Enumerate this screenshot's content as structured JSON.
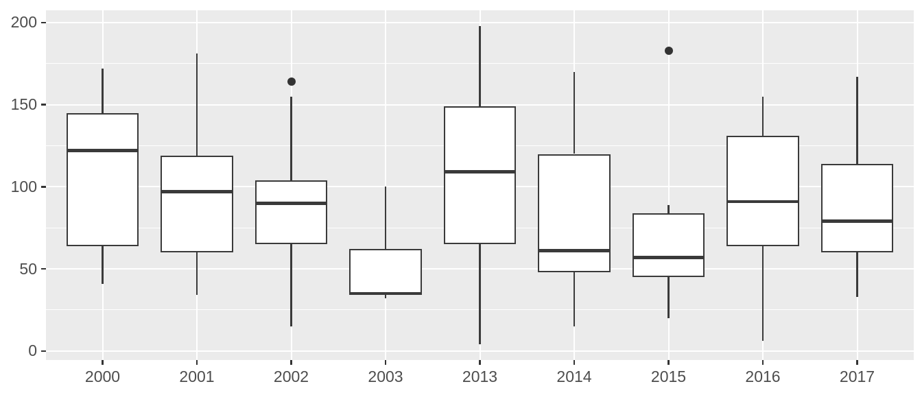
{
  "chart_data": {
    "type": "boxplot",
    "title": "",
    "xlabel": "",
    "ylabel": "",
    "categories": [
      "2000",
      "2001",
      "2002",
      "2003",
      "2013",
      "2014",
      "2015",
      "2016",
      "2017"
    ],
    "series": [
      {
        "category": "2000",
        "min": 41,
        "q1": 64,
        "median": 122,
        "q3": 145,
        "max": 172,
        "outliers": []
      },
      {
        "category": "2001",
        "min": 34,
        "q1": 60,
        "median": 97,
        "q3": 119,
        "max": 181,
        "outliers": []
      },
      {
        "category": "2002",
        "min": 15,
        "q1": 65,
        "median": 90,
        "q3": 104,
        "max": 155,
        "outliers": [
          164
        ]
      },
      {
        "category": "2003",
        "min": 32,
        "q1": 34,
        "median": 35,
        "q3": 62,
        "max": 100,
        "outliers": []
      },
      {
        "category": "2013",
        "min": 4,
        "q1": 65,
        "median": 109,
        "q3": 149,
        "max": 198,
        "outliers": []
      },
      {
        "category": "2014",
        "min": 15,
        "q1": 48,
        "median": 61,
        "q3": 120,
        "max": 170,
        "outliers": []
      },
      {
        "category": "2015",
        "min": 20,
        "q1": 45,
        "median": 57,
        "q3": 84,
        "max": 89,
        "outliers": [
          183
        ]
      },
      {
        "category": "2016",
        "min": 6,
        "q1": 64,
        "median": 91,
        "q3": 131,
        "max": 155,
        "outliers": []
      },
      {
        "category": "2017",
        "min": 33,
        "q1": 60,
        "median": 79,
        "q3": 114,
        "max": 167,
        "outliers": []
      }
    ],
    "y_ticks": [
      0,
      50,
      100,
      150,
      200
    ],
    "y_minor_ticks": [
      25,
      75,
      125,
      175
    ],
    "ylim": [
      -5.5,
      207.5
    ],
    "grid": true,
    "legend_position": "none"
  },
  "style": {
    "panel_bg": "#EBEBEB",
    "grid_color": "#FFFFFF",
    "box_fill": "#FFFFFF",
    "box_stroke": "#3A3A3A",
    "axis_text_color": "#4D4D4D",
    "tick_color": "#333333"
  }
}
